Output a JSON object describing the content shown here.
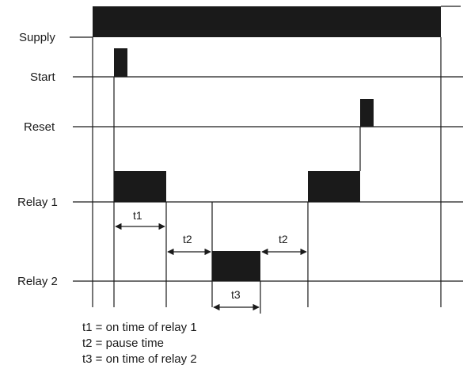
{
  "signals": {
    "supply": "Supply",
    "start": "Start",
    "reset": "Reset",
    "relay1": "Relay 1",
    "relay2": "Relay 2"
  },
  "dimensions": {
    "t1": "t1",
    "t2_first": "t2",
    "t2_second": "t2",
    "t3": "t3"
  },
  "legend": {
    "t1": "t1 = on time of relay 1",
    "t2": "t2 = pause time",
    "t3": "t3 = on time of relay 2"
  },
  "colors": {
    "ink": "#1a1a1a",
    "fill": "#1a1a1a",
    "background": "#ffffff"
  }
}
